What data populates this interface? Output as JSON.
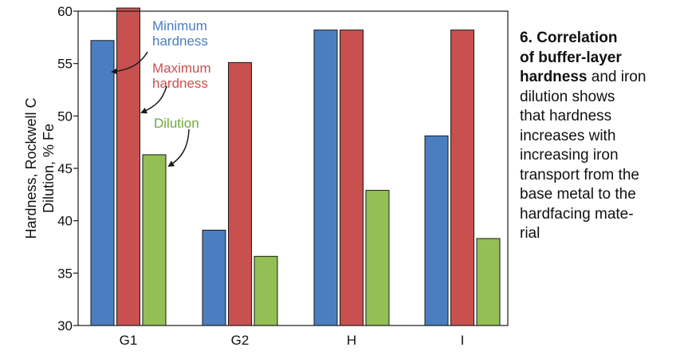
{
  "chart_data": {
    "type": "bar",
    "categories": [
      "G1",
      "G2",
      "H",
      "I"
    ],
    "series": [
      {
        "name": "Minimum hardness",
        "values": [
          57.2,
          39.1,
          58.2,
          48.1
        ]
      },
      {
        "name": "Maximum hardness",
        "values": [
          60.3,
          55.1,
          58.2,
          58.2
        ]
      },
      {
        "name": "Dilution",
        "values": [
          46.3,
          36.6,
          42.9,
          38.3
        ]
      }
    ],
    "ylabel_lines": [
      "Hardness, Rockwell C",
      "Dilution, % Fe"
    ],
    "ylim": [
      30,
      60
    ],
    "yticks": [
      "30",
      "35",
      "40",
      "45",
      "50",
      "55",
      "60"
    ],
    "legend": "annotations with arrows, top-left",
    "colors": {
      "min": "#4a7ec0",
      "max": "#c8504f",
      "dilution": "#93bf55"
    },
    "annotations": [
      {
        "lines": [
          "Minimum",
          "hardness"
        ],
        "color": "#4a7ec0"
      },
      {
        "lines": [
          "Maximum",
          "hardness"
        ],
        "color": "#c8504f"
      },
      {
        "lines": [
          "Dilution"
        ],
        "color": "#6faa3a"
      }
    ]
  },
  "caption": {
    "lines": [
      {
        "bold": "6. Correlation",
        "rest": ""
      },
      {
        "bold": "of buffer-layer",
        "rest": ""
      },
      {
        "bold": "hardness",
        "rest": " and iron"
      },
      {
        "bold": "",
        "rest": "dilution shows"
      },
      {
        "bold": "",
        "rest": "that hardness"
      },
      {
        "bold": "",
        "rest": "increases with"
      },
      {
        "bold": "",
        "rest": "increasing iron"
      },
      {
        "bold": "",
        "rest": "transport from the"
      },
      {
        "bold": "",
        "rest": "base metal to the"
      },
      {
        "bold": "",
        "rest": "hardfacing mate-"
      },
      {
        "bold": "",
        "rest": "rial"
      }
    ]
  }
}
